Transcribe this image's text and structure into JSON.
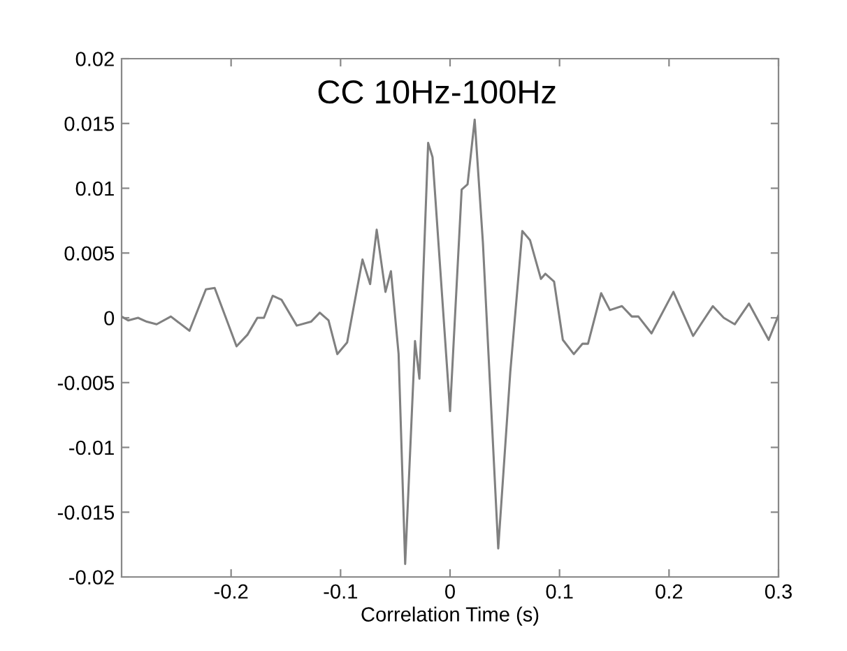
{
  "chart_data": {
    "type": "line",
    "title": "CC 10Hz-100Hz",
    "xlabel": "Correlation Time (s)",
    "x": [
      -0.3,
      -0.294,
      -0.285,
      -0.277,
      -0.268,
      -0.255,
      -0.238,
      -0.223,
      -0.215,
      -0.195,
      -0.185,
      -0.176,
      -0.17,
      -0.162,
      -0.154,
      -0.14,
      -0.127,
      -0.119,
      -0.111,
      -0.103,
      -0.094,
      -0.08,
      -0.073,
      -0.067,
      -0.059,
      -0.054,
      -0.047,
      -0.041,
      -0.032,
      -0.028,
      -0.02,
      -0.016,
      0.0,
      0.0106,
      0.016,
      0.0225,
      0.03,
      0.044,
      0.055,
      0.066,
      0.073,
      0.083,
      0.087,
      0.095,
      0.103,
      0.113,
      0.121,
      0.126,
      0.138,
      0.146,
      0.157,
      0.166,
      0.172,
      0.184,
      0.204,
      0.222,
      0.24,
      0.25,
      0.26,
      0.273,
      0.291,
      0.3
    ],
    "series": [
      {
        "color": "#808080",
        "values": [
          0.0001,
          -0.0002,
          0.0,
          -0.0003,
          -0.0005,
          0.0001,
          -0.001,
          0.0022,
          0.0023,
          -0.0022,
          -0.0013,
          0.0,
          0.0,
          0.0017,
          0.0014,
          -0.0006,
          -0.0003,
          0.0004,
          -0.0002,
          -0.0028,
          -0.0019,
          0.0045,
          0.0026,
          0.0068,
          0.002,
          0.0036,
          -0.0028,
          -0.019,
          -0.0018,
          -0.0047,
          0.0135,
          0.0124,
          -0.0072,
          0.0099,
          0.0103,
          0.0153,
          0.0058,
          -0.0178,
          -0.0042,
          0.0067,
          0.006,
          0.003,
          0.0034,
          0.0028,
          -0.0017,
          -0.0028,
          -0.002,
          -0.002,
          0.0019,
          0.0006,
          0.0009,
          0.0001,
          0.0001,
          -0.0012,
          0.002,
          -0.0014,
          0.0009,
          0.0,
          -0.0005,
          0.0011,
          -0.0017,
          0.0002
        ]
      }
    ],
    "xlim": [
      -0.3,
      0.3
    ],
    "xticks": [
      -0.2,
      -0.1,
      0,
      0.1,
      0.2,
      0.3
    ],
    "ylim": [
      -0.02,
      0.02
    ],
    "yticks": [
      -0.02,
      -0.015,
      -0.01,
      -0.005,
      0,
      0.005,
      0.01,
      0.015,
      0.02
    ],
    "grid": false,
    "legend": false
  }
}
